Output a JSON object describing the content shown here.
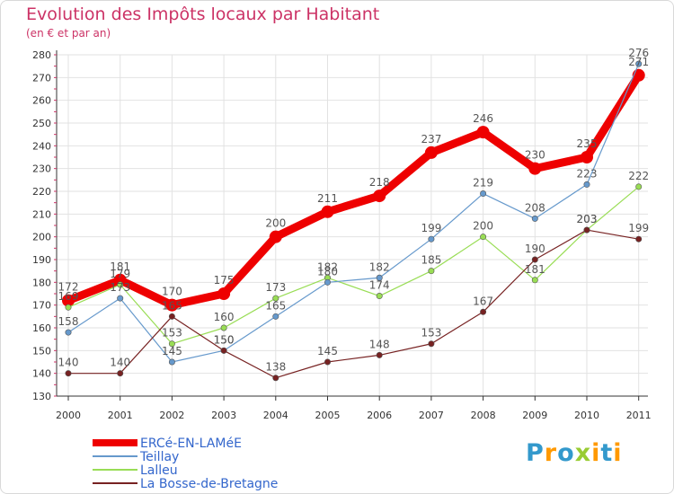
{
  "chart_data": {
    "type": "line",
    "title": "Evolution des Impôts locaux par Habitant",
    "subtitle": "(en € et par an)",
    "categories": [
      "2000",
      "2001",
      "2002",
      "2003",
      "2004",
      "2005",
      "2006",
      "2007",
      "2008",
      "2009",
      "2010",
      "2011"
    ],
    "ylim": [
      130,
      280
    ],
    "yticks": [
      130,
      140,
      150,
      160,
      170,
      180,
      190,
      200,
      210,
      220,
      230,
      240,
      250,
      260,
      270,
      280
    ],
    "series": [
      {
        "name": "ERCé-EN-LAMéE",
        "color": "#ee0000",
        "values": [
          172,
          181,
          170,
          175,
          200,
          211,
          218,
          237,
          246,
          230,
          235,
          271
        ]
      },
      {
        "name": "Teillay",
        "color": "#6699cc",
        "values": [
          158,
          173,
          145,
          150,
          165,
          180,
          182,
          199,
          219,
          208,
          223,
          276
        ]
      },
      {
        "name": "Lalleu",
        "color": "#99dd55",
        "values": [
          169,
          179,
          153,
          160,
          173,
          182,
          174,
          185,
          200,
          181,
          203,
          222
        ]
      },
      {
        "name": "La Bosse-de-Bretagne",
        "color": "#772222",
        "values": [
          140,
          140,
          165,
          150,
          138,
          145,
          148,
          153,
          167,
          190,
          203,
          199
        ]
      }
    ]
  },
  "logo": {
    "text": "Proxiti",
    "letters": [
      "P",
      "r",
      "o",
      "x",
      "i",
      "t",
      "i"
    ],
    "colors": [
      "#3399cc",
      "#ff9900",
      "#3399cc",
      "#99cc33",
      "#ff9900",
      "#3399cc",
      "#ff9900"
    ]
  }
}
